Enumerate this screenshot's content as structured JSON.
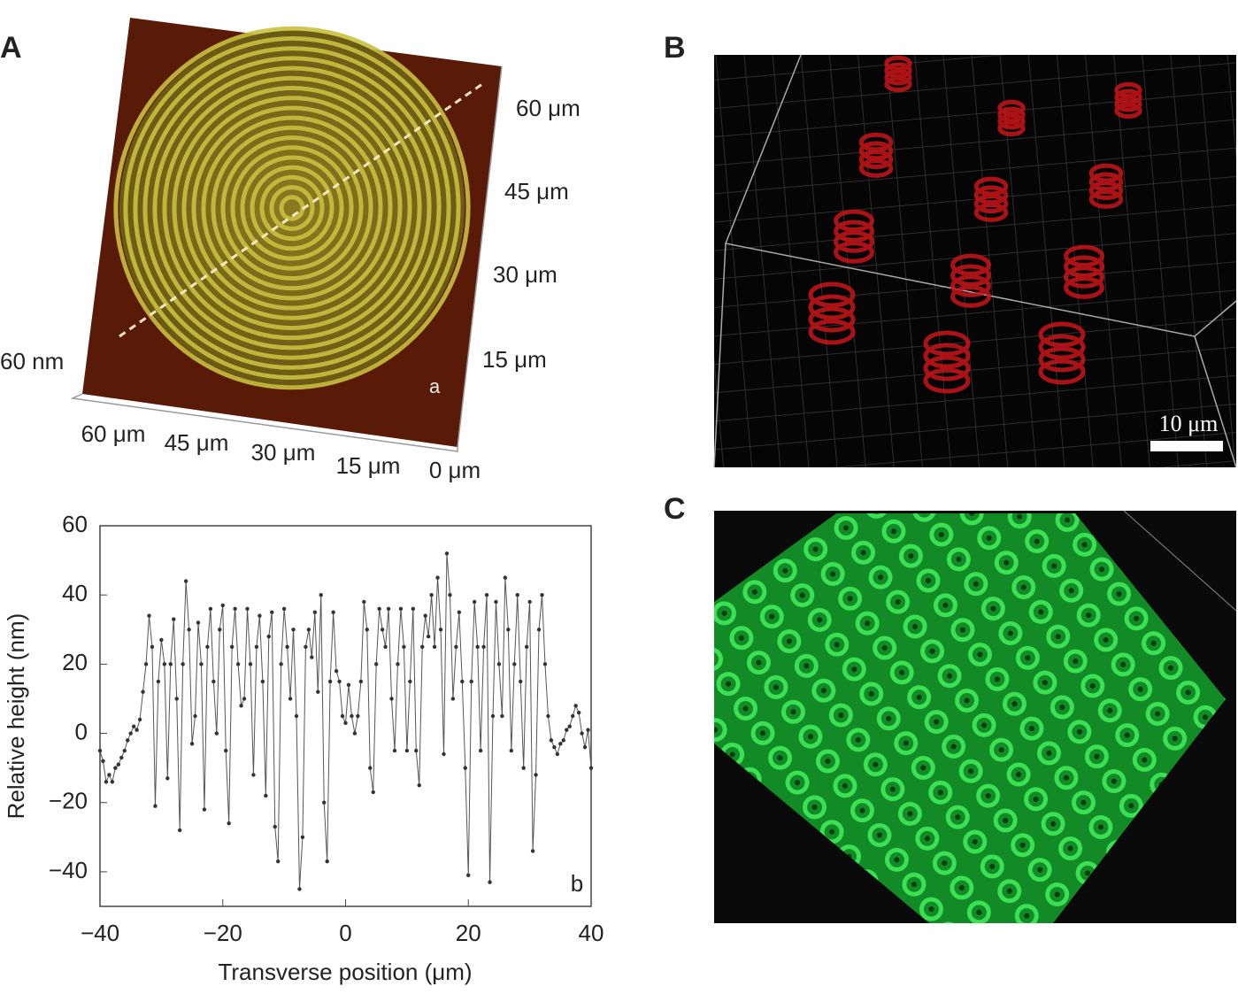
{
  "panels": {
    "A": {
      "label": "A",
      "y_labels": [
        "60 μm",
        "45 μm",
        "30 μm",
        "15 μm"
      ],
      "z_label": "60 nm",
      "x_labels": [
        "60 μm",
        "45 μm",
        "30 μm",
        "15 μm",
        "0 μm"
      ],
      "tag": "a"
    },
    "B": {
      "label": "B",
      "scale_bar": "10 μm"
    },
    "C": {
      "label": "C"
    }
  },
  "chart_data": {
    "type": "line",
    "annotation": "b",
    "x_label": "Transverse position (μm)",
    "y_label": "Relative height (nm)",
    "xlim": [
      -40,
      40
    ],
    "ylim": [
      -50,
      60
    ],
    "xticks": [
      {
        "value": -40,
        "label": "−40"
      },
      {
        "value": -20,
        "label": "−20"
      },
      0,
      20,
      40
    ],
    "yticks": [
      {
        "value": -40,
        "label": "−40"
      },
      {
        "value": -20,
        "label": "−20"
      },
      0,
      20,
      40,
      60
    ],
    "color": "#555555",
    "x": [
      -40,
      -39.5,
      -39,
      -38.5,
      -38,
      -37.5,
      -37,
      -36.5,
      -36,
      -35.5,
      -35,
      -34.5,
      -34,
      -33.5,
      -33,
      -32.5,
      -32,
      -31.5,
      -31,
      -30.5,
      -30,
      -29.5,
      -29,
      -28.5,
      -28,
      -27.5,
      -27,
      -26.5,
      -26,
      -25.5,
      -25,
      -24.5,
      -24,
      -23.5,
      -23,
      -22.5,
      -22,
      -21.5,
      -21,
      -20.5,
      -20,
      -19.5,
      -19,
      -18.5,
      -18,
      -17.5,
      -17,
      -16.5,
      -16,
      -15.5,
      -15,
      -14.5,
      -14,
      -13.5,
      -13,
      -12.5,
      -12,
      -11.5,
      -11,
      -10.5,
      -10,
      -9.5,
      -9,
      -8.5,
      -8,
      -7.5,
      -7,
      -6.5,
      -6,
      -5.5,
      -5,
      -4.5,
      -4,
      -3.5,
      -3,
      -2.5,
      -2,
      -1.5,
      -1,
      -0.5,
      0,
      0.5,
      1,
      1.5,
      2,
      2.5,
      3,
      3.5,
      4,
      4.5,
      5,
      5.5,
      6,
      6.5,
      7,
      7.5,
      8,
      8.5,
      9,
      9.5,
      10,
      10.5,
      11,
      11.5,
      12,
      12.5,
      13,
      13.5,
      14,
      14.5,
      15,
      15.5,
      16,
      16.5,
      17,
      17.5,
      18,
      18.5,
      19,
      19.5,
      20,
      20.5,
      21,
      21.5,
      22,
      22.5,
      23,
      23.5,
      24,
      24.5,
      25,
      25.5,
      26,
      26.5,
      27,
      27.5,
      28,
      28.5,
      29,
      29.5,
      30,
      30.5,
      31,
      31.5,
      32,
      32.5,
      33,
      33.5,
      34,
      34.5,
      35,
      35.5,
      36,
      36.5,
      37,
      37.5,
      38,
      38.5,
      39,
      39.5,
      40
    ],
    "values": [
      -5,
      -8,
      -14,
      -12,
      -14,
      -10,
      -9,
      -7,
      -5,
      -2,
      0,
      2,
      1,
      4,
      12,
      20,
      34,
      25,
      -21,
      15,
      27,
      20,
      -13,
      20,
      33,
      10,
      -28,
      20,
      44,
      30,
      -3,
      5,
      32,
      20,
      -22,
      25,
      36,
      15,
      0,
      30,
      37,
      -5,
      -26,
      25,
      36,
      20,
      8,
      10,
      36,
      20,
      -12,
      25,
      34,
      15,
      -18,
      28,
      35,
      -27,
      -37,
      20,
      36,
      25,
      10,
      30,
      5,
      -45,
      -30,
      25,
      30,
      22,
      35,
      12,
      40,
      -20,
      -37,
      15,
      35,
      18,
      15,
      5,
      3,
      14,
      5,
      0,
      5,
      15,
      38,
      30,
      -10,
      -17,
      20,
      36,
      30,
      25,
      36,
      10,
      -5,
      20,
      36,
      25,
      -5,
      15,
      36,
      -5,
      -15,
      25,
      34,
      28,
      40,
      25,
      45,
      30,
      -6,
      52,
      40,
      10,
      25,
      35,
      15,
      -10,
      -41,
      15,
      38,
      25,
      -5,
      25,
      40,
      -43,
      5,
      38,
      20,
      5,
      45,
      30,
      -5,
      20,
      40,
      15,
      -10,
      25,
      38,
      -34,
      -12,
      30,
      40,
      20,
      5,
      -2,
      -4,
      -6,
      -3,
      -2,
      1,
      2,
      5,
      8,
      6,
      0,
      -4,
      1,
      -10
    ]
  }
}
